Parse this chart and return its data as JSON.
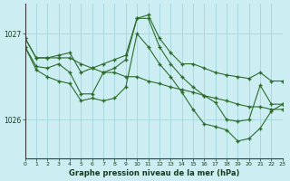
{
  "title": "Graphe pression niveau de la mer (hPa)",
  "xlabel": "Graphe pression niveau de la mer (hPa)",
  "background_color": "#cceef2",
  "grid_color": "#aad8de",
  "line_color": "#2d6b2d",
  "marker_color": "#2d6b2d",
  "xmin": 0,
  "xmax": 23,
  "ymin": 1025.55,
  "ymax": 1027.35,
  "yticks": [
    1026,
    1027
  ],
  "series": [
    [
      1026.95,
      1026.72,
      1026.72,
      1026.75,
      1026.78,
      1026.55,
      1026.6,
      1026.65,
      1026.7,
      1026.75,
      1027.18,
      1027.22,
      1026.95,
      1026.78,
      1026.65,
      1026.65,
      1026.6,
      1026.55,
      1026.52,
      1026.5,
      1026.48,
      1026.55,
      1026.45,
      1026.45
    ],
    [
      1026.95,
      1026.72,
      1026.72,
      1026.72,
      1026.72,
      1026.65,
      1026.6,
      1026.55,
      1026.55,
      1026.5,
      1026.5,
      1026.45,
      1026.42,
      1026.38,
      1026.35,
      1026.32,
      1026.28,
      1026.25,
      1026.22,
      1026.18,
      1026.15,
      1026.15,
      1026.12,
      1026.12
    ],
    [
      1026.85,
      1026.62,
      1026.6,
      1026.65,
      1026.55,
      1026.3,
      1026.3,
      1026.55,
      1026.6,
      1026.7,
      1027.18,
      1027.18,
      1026.85,
      1026.65,
      1026.5,
      1026.38,
      1026.28,
      1026.2,
      1026.0,
      1025.98,
      1026.0,
      1026.4,
      1026.18,
      1026.18
    ],
    [
      1026.85,
      1026.58,
      1026.5,
      1026.45,
      1026.42,
      1026.22,
      1026.25,
      1026.22,
      1026.25,
      1026.38,
      1027.0,
      1026.85,
      1026.65,
      1026.5,
      1026.32,
      1026.12,
      1025.95,
      1025.92,
      1025.88,
      1025.75,
      1025.78,
      1025.9,
      1026.1,
      1026.18
    ]
  ]
}
